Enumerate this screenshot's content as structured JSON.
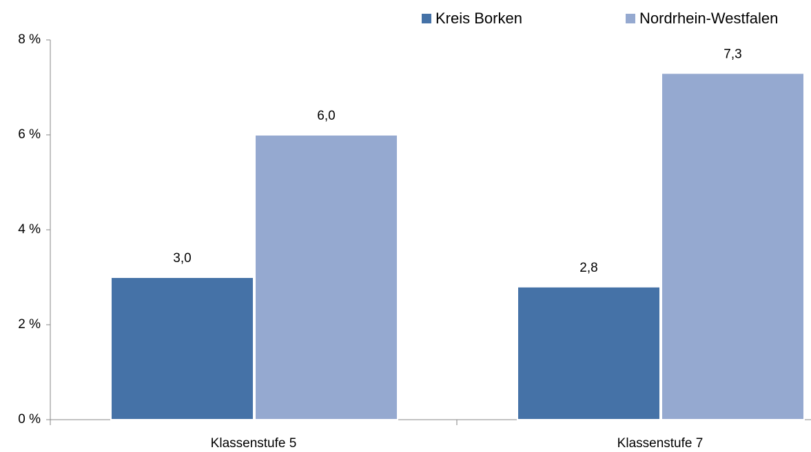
{
  "chart_data": {
    "type": "bar",
    "categories": [
      "Klassenstufe 5",
      "Klassenstufe 7"
    ],
    "series": [
      {
        "name": "Kreis Borken",
        "color": "#4572a7",
        "values": [
          3.0,
          2.8
        ],
        "value_labels": [
          "3,0",
          "2,8"
        ]
      },
      {
        "name": "Nordrhein-Westfalen",
        "color": "#95a9d0",
        "values": [
          6.0,
          7.3
        ],
        "value_labels": [
          "6,0",
          "7,3"
        ]
      }
    ],
    "ylim": [
      0,
      8
    ],
    "yticks": [
      {
        "value": 0,
        "label": "0 %"
      },
      {
        "value": 2,
        "label": "2 %"
      },
      {
        "value": 4,
        "label": "4 %"
      },
      {
        "value": 6,
        "label": "6 %"
      },
      {
        "value": 8,
        "label": "8 %"
      }
    ],
    "grid": false,
    "legend": "top"
  }
}
